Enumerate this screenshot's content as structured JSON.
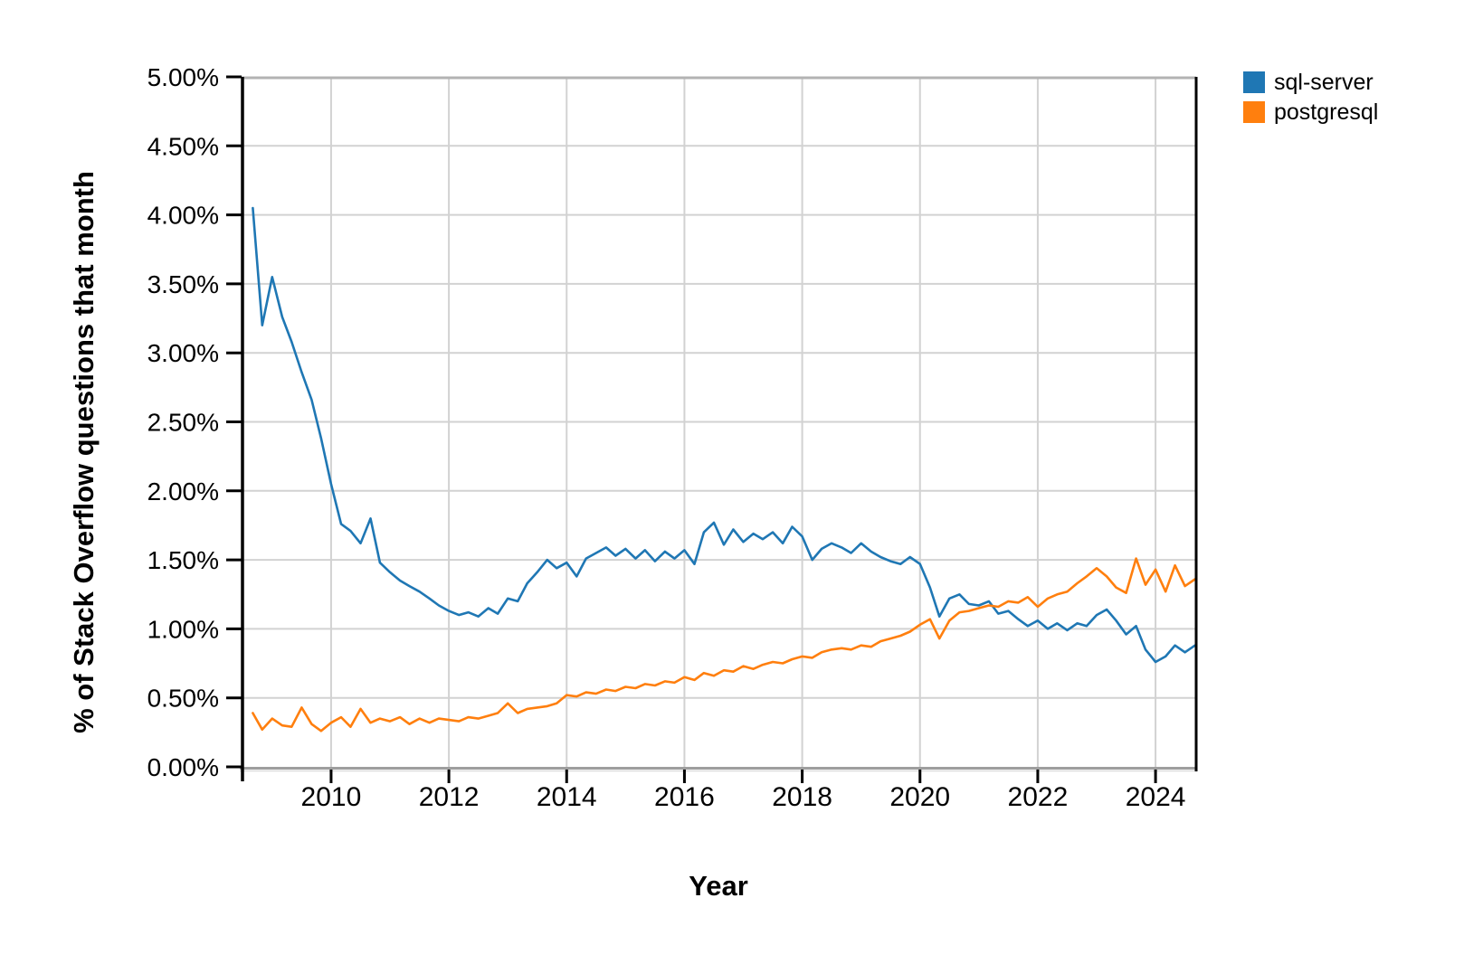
{
  "chart_data": {
    "type": "line",
    "title": "",
    "xlabel": "Year",
    "ylabel": "% of Stack Overflow questions that month",
    "xlim": [
      2008.48,
      2024.69
    ],
    "ylim": [
      0,
      5
    ],
    "grid": true,
    "legend_position": "top-right-outside",
    "x_ticks": [
      {
        "value": 2010,
        "label": "2010"
      },
      {
        "value": 2012,
        "label": "2012"
      },
      {
        "value": 2014,
        "label": "2014"
      },
      {
        "value": 2016,
        "label": "2016"
      },
      {
        "value": 2018,
        "label": "2018"
      },
      {
        "value": 2020,
        "label": "2020"
      },
      {
        "value": 2022,
        "label": "2022"
      },
      {
        "value": 2024,
        "label": "2024"
      }
    ],
    "y_ticks": [
      {
        "value": 5.0,
        "label": "5.00%"
      },
      {
        "value": 4.5,
        "label": "4.50%"
      },
      {
        "value": 4.0,
        "label": "4.00%"
      },
      {
        "value": 3.5,
        "label": "3.50%"
      },
      {
        "value": 3.0,
        "label": "3.00%"
      },
      {
        "value": 2.5,
        "label": "2.50%"
      },
      {
        "value": 2.0,
        "label": "2.00%"
      },
      {
        "value": 1.5,
        "label": "1.50%"
      },
      {
        "value": 1.0,
        "label": "1.00%"
      },
      {
        "value": 0.5,
        "label": "0.50%"
      },
      {
        "value": 0.0,
        "label": "0.00%"
      }
    ],
    "x": [
      2008.67,
      2008.83,
      2009.0,
      2009.17,
      2009.33,
      2009.5,
      2009.67,
      2009.83,
      2010.0,
      2010.17,
      2010.33,
      2010.5,
      2010.67,
      2010.83,
      2011.0,
      2011.17,
      2011.33,
      2011.5,
      2011.67,
      2011.83,
      2012.0,
      2012.17,
      2012.33,
      2012.5,
      2012.67,
      2012.83,
      2013.0,
      2013.17,
      2013.33,
      2013.5,
      2013.67,
      2013.83,
      2014.0,
      2014.17,
      2014.33,
      2014.5,
      2014.67,
      2014.83,
      2015.0,
      2015.17,
      2015.33,
      2015.5,
      2015.67,
      2015.83,
      2016.0,
      2016.17,
      2016.33,
      2016.5,
      2016.67,
      2016.83,
      2017.0,
      2017.17,
      2017.33,
      2017.5,
      2017.67,
      2017.83,
      2018.0,
      2018.17,
      2018.33,
      2018.5,
      2018.67,
      2018.83,
      2019.0,
      2019.17,
      2019.33,
      2019.5,
      2019.67,
      2019.83,
      2020.0,
      2020.17,
      2020.33,
      2020.5,
      2020.67,
      2020.83,
      2021.0,
      2021.17,
      2021.33,
      2021.5,
      2021.67,
      2021.83,
      2022.0,
      2022.17,
      2022.33,
      2022.5,
      2022.67,
      2022.83,
      2023.0,
      2023.17,
      2023.33,
      2023.5,
      2023.67,
      2023.83,
      2024.0,
      2024.17,
      2024.33,
      2024.5,
      2024.67
    ],
    "series": [
      {
        "name": "sql-server",
        "color": "#1f77b4",
        "values": [
          4.05,
          3.2,
          3.55,
          3.26,
          3.08,
          2.86,
          2.66,
          2.38,
          2.05,
          1.76,
          1.71,
          1.62,
          1.8,
          1.48,
          1.41,
          1.35,
          1.31,
          1.27,
          1.22,
          1.17,
          1.13,
          1.1,
          1.12,
          1.09,
          1.15,
          1.11,
          1.22,
          1.2,
          1.33,
          1.41,
          1.5,
          1.44,
          1.48,
          1.38,
          1.51,
          1.55,
          1.59,
          1.53,
          1.58,
          1.51,
          1.57,
          1.49,
          1.56,
          1.51,
          1.57,
          1.47,
          1.7,
          1.77,
          1.61,
          1.72,
          1.63,
          1.69,
          1.65,
          1.7,
          1.62,
          1.74,
          1.67,
          1.5,
          1.58,
          1.62,
          1.59,
          1.55,
          1.62,
          1.56,
          1.52,
          1.49,
          1.47,
          1.52,
          1.47,
          1.3,
          1.09,
          1.22,
          1.25,
          1.18,
          1.17,
          1.2,
          1.11,
          1.13,
          1.07,
          1.02,
          1.06,
          1.0,
          1.04,
          0.99,
          1.04,
          1.02,
          1.1,
          1.14,
          1.06,
          0.96,
          1.02,
          0.85,
          0.76,
          0.8,
          0.88,
          0.83,
          0.88
        ]
      },
      {
        "name": "postgresql",
        "color": "#ff7f0e",
        "values": [
          0.39,
          0.27,
          0.35,
          0.3,
          0.29,
          0.43,
          0.31,
          0.26,
          0.32,
          0.36,
          0.29,
          0.42,
          0.32,
          0.35,
          0.33,
          0.36,
          0.31,
          0.35,
          0.32,
          0.35,
          0.34,
          0.33,
          0.36,
          0.35,
          0.37,
          0.39,
          0.46,
          0.39,
          0.42,
          0.43,
          0.44,
          0.46,
          0.52,
          0.51,
          0.54,
          0.53,
          0.56,
          0.55,
          0.58,
          0.57,
          0.6,
          0.59,
          0.62,
          0.61,
          0.65,
          0.63,
          0.68,
          0.66,
          0.7,
          0.69,
          0.73,
          0.71,
          0.74,
          0.76,
          0.75,
          0.78,
          0.8,
          0.79,
          0.83,
          0.85,
          0.86,
          0.85,
          0.88,
          0.87,
          0.91,
          0.93,
          0.95,
          0.98,
          1.03,
          1.07,
          0.93,
          1.06,
          1.12,
          1.13,
          1.15,
          1.17,
          1.16,
          1.2,
          1.19,
          1.23,
          1.16,
          1.22,
          1.25,
          1.27,
          1.33,
          1.38,
          1.44,
          1.38,
          1.3,
          1.26,
          1.51,
          1.32,
          1.43,
          1.27,
          1.46,
          1.31,
          1.36
        ]
      }
    ]
  },
  "legend": {
    "items": [
      {
        "label": "sql-server",
        "color": "#1f77b4"
      },
      {
        "label": "postgresql",
        "color": "#ff7f0e"
      }
    ]
  },
  "style_colors": {
    "gridline": "#d2d2d2",
    "frame_top": "#b3b3b3",
    "frame_bottom_dark": "#9e9e9e",
    "frame_bottom_light": "#dcdcdc",
    "axis_black": "#000000"
  }
}
